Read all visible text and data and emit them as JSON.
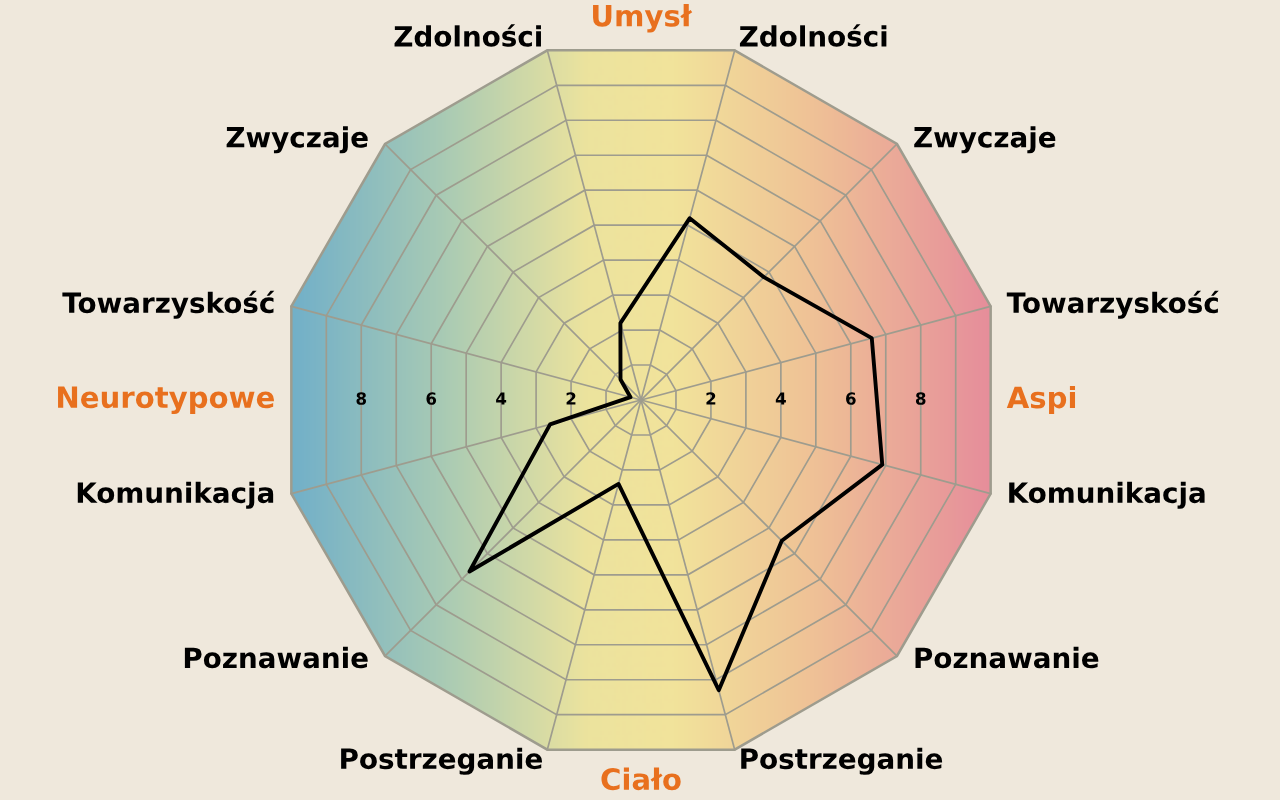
{
  "chart_data": {
    "type": "radar",
    "categories": [
      "Zdolności",
      "Zwyczaje",
      "Towarzyskość",
      "Komunikacja",
      "Poznawanie",
      "Postrzeganie",
      "Postrzeganie",
      "Poznawanie",
      "Komunikacja",
      "Towarzyskość",
      "Zwyczaje",
      "Zdolności"
    ],
    "series": [
      {
        "color": "#000000",
        "values": [
          5.2,
          4.8,
          6.6,
          6.9,
          5.5,
          8.3,
          2.4,
          6.7,
          2.6,
          0.3,
          0.8,
          2.2
        ]
      }
    ],
    "ylim": [
      0,
      10
    ],
    "yticks": [
      2,
      4,
      6,
      8
    ],
    "grid": true,
    "annotations": [
      "Umysł",
      "Aspi",
      "Ciało",
      "Neurotypowe",
      "2",
      "4",
      "6",
      "8"
    ]
  }
}
